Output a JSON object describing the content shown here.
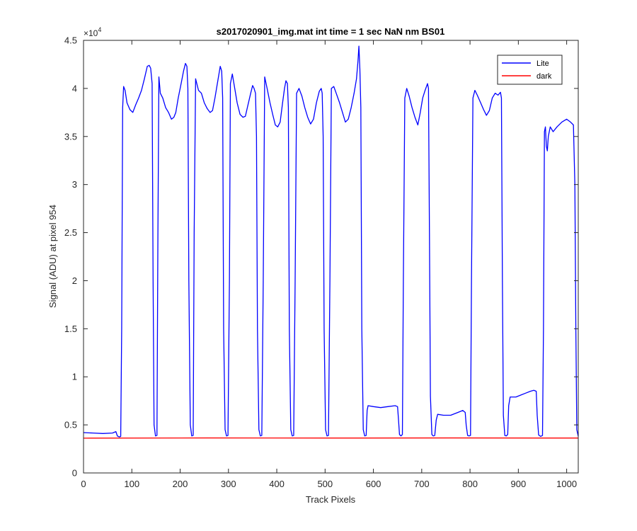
{
  "chart_data": {
    "type": "line",
    "title": "s2017020901_img.mat int time = 1 sec  NaN nm BS01",
    "xlabel": "Track Pixels",
    "ylabel": "Signal (ADU) at pixel 954",
    "xlim": [
      0,
      1024
    ],
    "ylim": [
      0,
      45000
    ],
    "exponent_label": "×10",
    "exponent_power": "4",
    "x_ticks": [
      0,
      100,
      200,
      300,
      400,
      500,
      600,
      700,
      800,
      900,
      1000
    ],
    "x_tick_labels": [
      "0",
      "100",
      "200",
      "300",
      "400",
      "500",
      "600",
      "700",
      "800",
      "900",
      "1000"
    ],
    "y_ticks": [
      0,
      5000,
      10000,
      15000,
      20000,
      25000,
      30000,
      35000,
      40000,
      45000
    ],
    "y_tick_labels": [
      "0",
      "0.5",
      "1",
      "1.5",
      "2",
      "2.5",
      "3",
      "3.5",
      "4",
      "4.5"
    ],
    "grid": false,
    "legend_position": "top-right",
    "series": [
      {
        "name": "Lite",
        "color": "#0000ff",
        "points": [
          [
            0,
            4200
          ],
          [
            20,
            4150
          ],
          [
            40,
            4100
          ],
          [
            60,
            4150
          ],
          [
            67,
            4300
          ],
          [
            70,
            3850
          ],
          [
            74,
            3750
          ],
          [
            77,
            3800
          ],
          [
            79,
            15000
          ],
          [
            81,
            38000
          ],
          [
            83,
            40200
          ],
          [
            86,
            39800
          ],
          [
            90,
            38500
          ],
          [
            96,
            37800
          ],
          [
            102,
            37500
          ],
          [
            108,
            38300
          ],
          [
            114,
            39000
          ],
          [
            120,
            39800
          ],
          [
            126,
            41000
          ],
          [
            132,
            42300
          ],
          [
            136,
            42400
          ],
          [
            139,
            42100
          ],
          [
            142,
            40500
          ],
          [
            144,
            20000
          ],
          [
            146,
            5000
          ],
          [
            149,
            3850
          ],
          [
            152,
            3900
          ],
          [
            154,
            25000
          ],
          [
            156,
            41200
          ],
          [
            159,
            39500
          ],
          [
            164,
            39000
          ],
          [
            170,
            38000
          ],
          [
            176,
            37500
          ],
          [
            182,
            36800
          ],
          [
            187,
            37000
          ],
          [
            191,
            37500
          ],
          [
            196,
            39000
          ],
          [
            202,
            40500
          ],
          [
            207,
            41800
          ],
          [
            211,
            42600
          ],
          [
            214,
            42300
          ],
          [
            216,
            40000
          ],
          [
            218,
            20000
          ],
          [
            221,
            5000
          ],
          [
            224,
            3850
          ],
          [
            227,
            3900
          ],
          [
            229,
            25000
          ],
          [
            232,
            41000
          ],
          [
            238,
            39800
          ],
          [
            244,
            39500
          ],
          [
            250,
            38500
          ],
          [
            256,
            37900
          ],
          [
            262,
            37500
          ],
          [
            267,
            37700
          ],
          [
            272,
            39000
          ],
          [
            278,
            40800
          ],
          [
            283,
            42300
          ],
          [
            286,
            41800
          ],
          [
            288,
            39000
          ],
          [
            290,
            15000
          ],
          [
            293,
            4500
          ],
          [
            296,
            3850
          ],
          [
            299,
            3900
          ],
          [
            302,
            20000
          ],
          [
            304,
            40500
          ],
          [
            308,
            41500
          ],
          [
            313,
            40000
          ],
          [
            318,
            38500
          ],
          [
            324,
            37300
          ],
          [
            330,
            37000
          ],
          [
            335,
            37100
          ],
          [
            340,
            38200
          ],
          [
            346,
            39500
          ],
          [
            350,
            40300
          ],
          [
            353,
            40000
          ],
          [
            356,
            39500
          ],
          [
            358,
            35000
          ],
          [
            360,
            15000
          ],
          [
            363,
            4500
          ],
          [
            366,
            3850
          ],
          [
            369,
            3900
          ],
          [
            372,
            20000
          ],
          [
            375,
            41200
          ],
          [
            380,
            40000
          ],
          [
            386,
            38500
          ],
          [
            392,
            37200
          ],
          [
            397,
            36200
          ],
          [
            402,
            36000
          ],
          [
            407,
            36500
          ],
          [
            412,
            38500
          ],
          [
            416,
            40000
          ],
          [
            419,
            40800
          ],
          [
            422,
            40500
          ],
          [
            424,
            38000
          ],
          [
            426,
            15000
          ],
          [
            429,
            4500
          ],
          [
            432,
            3850
          ],
          [
            435,
            3900
          ],
          [
            438,
            20000
          ],
          [
            441,
            39500
          ],
          [
            446,
            40000
          ],
          [
            452,
            39200
          ],
          [
            458,
            38000
          ],
          [
            464,
            37000
          ],
          [
            470,
            36300
          ],
          [
            476,
            36800
          ],
          [
            482,
            38500
          ],
          [
            488,
            39700
          ],
          [
            492,
            40000
          ],
          [
            494,
            39500
          ],
          [
            496,
            35000
          ],
          [
            498,
            15000
          ],
          [
            501,
            4500
          ],
          [
            504,
            3850
          ],
          [
            507,
            3900
          ],
          [
            510,
            20000
          ],
          [
            513,
            40000
          ],
          [
            518,
            40200
          ],
          [
            523,
            39500
          ],
          [
            530,
            38500
          ],
          [
            536,
            37500
          ],
          [
            542,
            36500
          ],
          [
            548,
            36800
          ],
          [
            554,
            38000
          ],
          [
            560,
            39500
          ],
          [
            565,
            41000
          ],
          [
            568,
            42800
          ],
          [
            570,
            44400
          ],
          [
            572,
            42000
          ],
          [
            574,
            38000
          ],
          [
            576,
            15000
          ],
          [
            579,
            4500
          ],
          [
            582,
            3850
          ],
          [
            585,
            3900
          ],
          [
            587,
            6500
          ],
          [
            589,
            7000
          ],
          [
            600,
            6900
          ],
          [
            615,
            6800
          ],
          [
            630,
            6900
          ],
          [
            645,
            7000
          ],
          [
            650,
            6900
          ],
          [
            652,
            5500
          ],
          [
            654,
            4000
          ],
          [
            657,
            3850
          ],
          [
            660,
            4000
          ],
          [
            662,
            20000
          ],
          [
            665,
            39000
          ],
          [
            669,
            40000
          ],
          [
            674,
            39200
          ],
          [
            680,
            38000
          ],
          [
            686,
            37000
          ],
          [
            692,
            36200
          ],
          [
            697,
            37500
          ],
          [
            702,
            39000
          ],
          [
            707,
            39800
          ],
          [
            712,
            40500
          ],
          [
            714,
            40000
          ],
          [
            716,
            25000
          ],
          [
            718,
            8000
          ],
          [
            721,
            4000
          ],
          [
            724,
            3850
          ],
          [
            727,
            3900
          ],
          [
            730,
            5500
          ],
          [
            733,
            6100
          ],
          [
            745,
            6000
          ],
          [
            760,
            6000
          ],
          [
            775,
            6300
          ],
          [
            785,
            6500
          ],
          [
            790,
            6300
          ],
          [
            792,
            5000
          ],
          [
            795,
            3900
          ],
          [
            798,
            3850
          ],
          [
            801,
            3900
          ],
          [
            803,
            20000
          ],
          [
            806,
            39000
          ],
          [
            810,
            39800
          ],
          [
            815,
            39300
          ],
          [
            822,
            38500
          ],
          [
            828,
            37800
          ],
          [
            834,
            37200
          ],
          [
            840,
            37700
          ],
          [
            846,
            39000
          ],
          [
            852,
            39500
          ],
          [
            858,
            39300
          ],
          [
            863,
            39600
          ],
          [
            865,
            39000
          ],
          [
            867,
            20000
          ],
          [
            869,
            6000
          ],
          [
            872,
            3900
          ],
          [
            875,
            3850
          ],
          [
            878,
            4000
          ],
          [
            880,
            7000
          ],
          [
            883,
            7900
          ],
          [
            895,
            7900
          ],
          [
            905,
            8100
          ],
          [
            915,
            8300
          ],
          [
            925,
            8500
          ],
          [
            932,
            8600
          ],
          [
            937,
            8500
          ],
          [
            939,
            6000
          ],
          [
            942,
            3950
          ],
          [
            946,
            3800
          ],
          [
            950,
            3900
          ],
          [
            952,
            15000
          ],
          [
            954,
            35500
          ],
          [
            956,
            36000
          ],
          [
            958,
            34000
          ],
          [
            960,
            33500
          ],
          [
            962,
            35000
          ],
          [
            966,
            36000
          ],
          [
            972,
            35500
          ],
          [
            980,
            36000
          ],
          [
            990,
            36500
          ],
          [
            1000,
            36800
          ],
          [
            1008,
            36500
          ],
          [
            1014,
            36200
          ],
          [
            1017,
            30000
          ],
          [
            1019,
            15000
          ],
          [
            1021,
            4500
          ],
          [
            1024,
            3800
          ]
        ]
      },
      {
        "name": "dark",
        "color": "#ff0000",
        "points": [
          [
            0,
            3620
          ],
          [
            256,
            3640
          ],
          [
            512,
            3630
          ],
          [
            768,
            3640
          ],
          [
            1024,
            3630
          ]
        ]
      }
    ]
  }
}
